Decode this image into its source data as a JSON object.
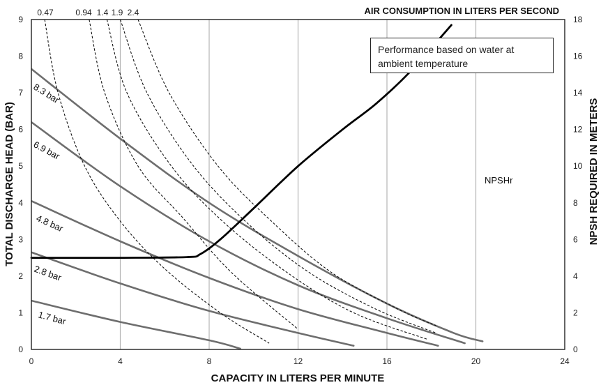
{
  "chart_data": {
    "type": "line",
    "title": "AIR CONSUMPTION IN LITERS PER SECOND",
    "xlabel": "CAPACITY IN LITERS PER MINUTE",
    "ylabel": "TOTAL DISCHARGE HEAD (BAR)",
    "y2label": "NPSH REQUIRED IN METERS",
    "xlim": [
      0,
      24
    ],
    "ylim": [
      0,
      9
    ],
    "y2lim": [
      0,
      18
    ],
    "x_ticks": [
      "0",
      "4",
      "8",
      "12",
      "16",
      "20",
      "24"
    ],
    "y_ticks": [
      "0",
      "1",
      "2",
      "3",
      "4",
      "5",
      "6",
      "7",
      "8",
      "9"
    ],
    "y2_ticks": [
      "0",
      "2",
      "4",
      "6",
      "8",
      "10",
      "12",
      "14",
      "16",
      "18"
    ],
    "grid": true,
    "note": "Performance based on water at ambient temperature",
    "pressure_curves": [
      {
        "name": "8.3 bar",
        "points": [
          [
            0,
            7.65
          ],
          [
            4,
            5.75
          ],
          [
            8,
            4.0
          ],
          [
            12,
            2.55
          ],
          [
            16,
            1.25
          ],
          [
            19,
            0.45
          ],
          [
            20.3,
            0.22
          ]
        ]
      },
      {
        "name": "6.9 bar",
        "points": [
          [
            0,
            6.2
          ],
          [
            4,
            4.45
          ],
          [
            8,
            2.95
          ],
          [
            12,
            1.75
          ],
          [
            16,
            0.85
          ],
          [
            19.5,
            0.17
          ]
        ]
      },
      {
        "name": "4.8 bar",
        "points": [
          [
            0,
            4.05
          ],
          [
            4,
            2.95
          ],
          [
            8,
            1.95
          ],
          [
            12,
            1.1
          ],
          [
            16,
            0.45
          ],
          [
            18.3,
            0.1
          ]
        ]
      },
      {
        "name": "2.8 bar",
        "points": [
          [
            0,
            2.65
          ],
          [
            4,
            1.8
          ],
          [
            8,
            1.05
          ],
          [
            12,
            0.45
          ],
          [
            14.5,
            0.1
          ]
        ]
      },
      {
        "name": "1.7 bar",
        "points": [
          [
            0,
            1.33
          ],
          [
            4,
            0.75
          ],
          [
            8,
            0.25
          ],
          [
            9.4,
            0.02
          ]
        ]
      }
    ],
    "air_curves": [
      {
        "name": "0.47",
        "points": [
          [
            0.6,
            9.0
          ],
          [
            1.2,
            7.0
          ],
          [
            2.4,
            5.0
          ],
          [
            4.0,
            3.5
          ],
          [
            6.0,
            2.2
          ],
          [
            8.5,
            1.0
          ],
          [
            10.7,
            0.17
          ]
        ]
      },
      {
        "name": "0.94",
        "points": [
          [
            2.6,
            9.0
          ],
          [
            3.3,
            7.0
          ],
          [
            4.8,
            5.0
          ],
          [
            6.8,
            3.6
          ],
          [
            9.0,
            2.1
          ],
          [
            12.0,
            0.55
          ]
        ]
      },
      {
        "name": "1.4",
        "points": [
          [
            3.4,
            9.0
          ],
          [
            4.3,
            7.0
          ],
          [
            6.3,
            5.0
          ],
          [
            8.6,
            3.5
          ],
          [
            11.5,
            2.1
          ],
          [
            14.5,
            1.0
          ],
          [
            17.8,
            0.28
          ]
        ]
      },
      {
        "name": "1.9",
        "points": [
          [
            4.0,
            9.0
          ],
          [
            5.2,
            7.0
          ],
          [
            7.3,
            5.0
          ],
          [
            9.8,
            3.4
          ],
          [
            12.5,
            2.1
          ],
          [
            15.5,
            1.1
          ],
          [
            18.2,
            0.45
          ]
        ]
      },
      {
        "name": "2.4",
        "points": [
          [
            4.8,
            9.0
          ],
          [
            6.2,
            7.0
          ],
          [
            8.4,
            5.0
          ],
          [
            10.8,
            3.5
          ],
          [
            13.5,
            2.1
          ],
          [
            16.5,
            1.1
          ],
          [
            18.2,
            0.65
          ]
        ]
      }
    ],
    "npshr": {
      "name": "NPSHr",
      "points": [
        [
          0,
          2.5
        ],
        [
          4,
          2.5
        ],
        [
          7,
          2.52
        ],
        [
          7.6,
          2.6
        ],
        [
          8.5,
          3.0
        ],
        [
          10,
          3.85
        ],
        [
          12,
          5.0
        ],
        [
          14,
          6.0
        ],
        [
          15.5,
          6.7
        ],
        [
          17,
          7.55
        ],
        [
          18.9,
          8.85
        ]
      ]
    }
  }
}
